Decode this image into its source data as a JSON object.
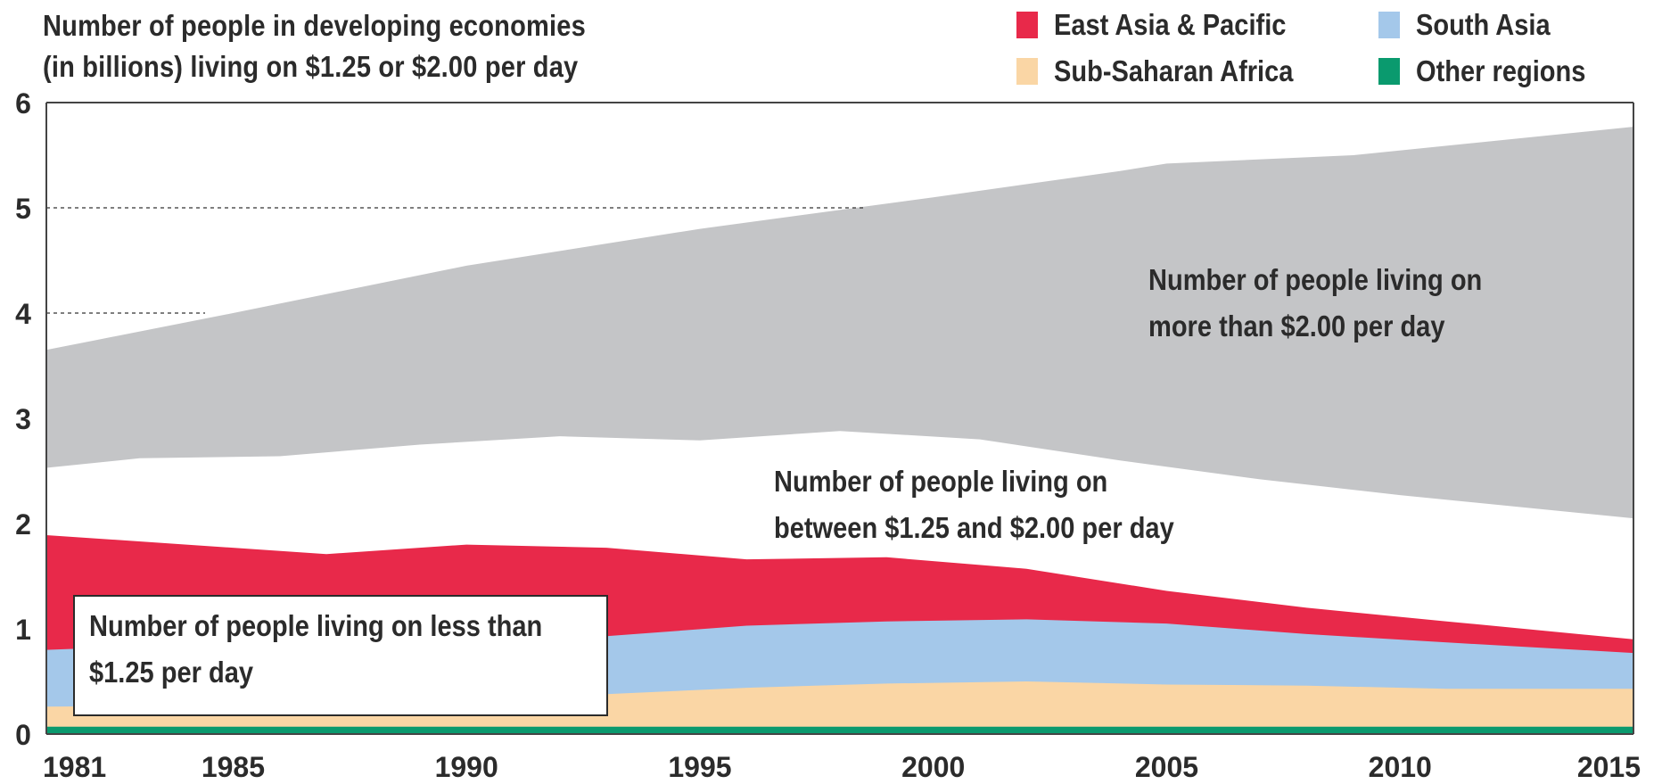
{
  "chart_data": {
    "type": "area",
    "title": "Number of people in developing economies\n(in billions) living on $1.25 or $2.00 per day",
    "xlabel": "",
    "ylabel": "",
    "xlim": [
      1981,
      2015
    ],
    "ylim": [
      0,
      6
    ],
    "x_ticks": [
      "1981",
      "1985",
      "1990",
      "1995",
      "2000",
      "2005",
      "2010",
      "2015"
    ],
    "y_ticks": [
      "0",
      "1",
      "2",
      "3",
      "4",
      "5",
      "6"
    ],
    "grid": "dashed lines at 4 and 5 on the left",
    "legend_position": "top-right",
    "series": [
      {
        "name": "Other regions",
        "color": "#0a9a6e",
        "x": [
          1981,
          1984,
          1987,
          1990,
          1993,
          1996,
          1999,
          2002,
          2005,
          2008,
          2011,
          2015
        ],
        "y": [
          0.07,
          0.07,
          0.07,
          0.07,
          0.07,
          0.07,
          0.07,
          0.07,
          0.07,
          0.07,
          0.07,
          0.07
        ]
      },
      {
        "name": "Sub-Saharan Africa",
        "color": "#fad6a5",
        "x": [
          1981,
          1984,
          1987,
          1990,
          1993,
          1996,
          1999,
          2002,
          2005,
          2008,
          2011,
          2015
        ],
        "y": [
          0.26,
          0.27,
          0.29,
          0.31,
          0.38,
          0.44,
          0.48,
          0.5,
          0.47,
          0.46,
          0.43,
          0.43
        ]
      },
      {
        "name": "South Asia",
        "color": "#a4c8ea",
        "x": [
          1981,
          1984,
          1987,
          1990,
          1993,
          1996,
          1999,
          2002,
          2005,
          2008,
          2011,
          2015
        ],
        "y": [
          0.8,
          0.85,
          0.87,
          0.88,
          0.93,
          1.03,
          1.07,
          1.09,
          1.05,
          0.95,
          0.87,
          0.77
        ]
      },
      {
        "name": "East Asia & Pacific",
        "color": "#e8294a",
        "x": [
          1981,
          1984,
          1987,
          1990,
          1993,
          1996,
          1999,
          2002,
          2005,
          2008,
          2011,
          2015
        ],
        "y": [
          1.89,
          1.8,
          1.71,
          1.8,
          1.77,
          1.66,
          1.68,
          1.57,
          1.36,
          1.2,
          1.07,
          0.9
        ]
      }
    ],
    "bands": [
      {
        "name": "$1.25 to $2.00 per day",
        "color": "#ffffff",
        "x": [
          1981,
          1983,
          1986,
          1989,
          1992,
          1995,
          1998,
          2001,
          2004,
          2007,
          2010,
          2015
        ],
        "upper": [
          2.53,
          2.62,
          2.64,
          2.75,
          2.83,
          2.79,
          2.88,
          2.8,
          2.6,
          2.42,
          2.27,
          2.05
        ]
      },
      {
        "name": "more than $2.00 per day",
        "color": "#c4c5c7",
        "x": [
          1981,
          1985,
          1990,
          1995,
          2000,
          2004,
          2005,
          2009,
          2015
        ],
        "upper": [
          3.65,
          4.0,
          4.45,
          4.8,
          5.1,
          5.35,
          5.42,
          5.5,
          5.77
        ]
      }
    ],
    "annotations": {
      "above_2": "Number of people living on\nmore than $2.00 per day",
      "between": "Number of people living on\nbetween $1.25 and $2.00 per day",
      "below_125": "Number of people living on less than\n$1.25 per day"
    }
  },
  "legend": [
    {
      "label": "East Asia & Pacific",
      "color": "#e8294a"
    },
    {
      "label": "South Asia",
      "color": "#a4c8ea"
    },
    {
      "label": "Sub-Saharan Africa",
      "color": "#fad6a5"
    },
    {
      "label": "Other regions",
      "color": "#0a9a6e"
    }
  ]
}
